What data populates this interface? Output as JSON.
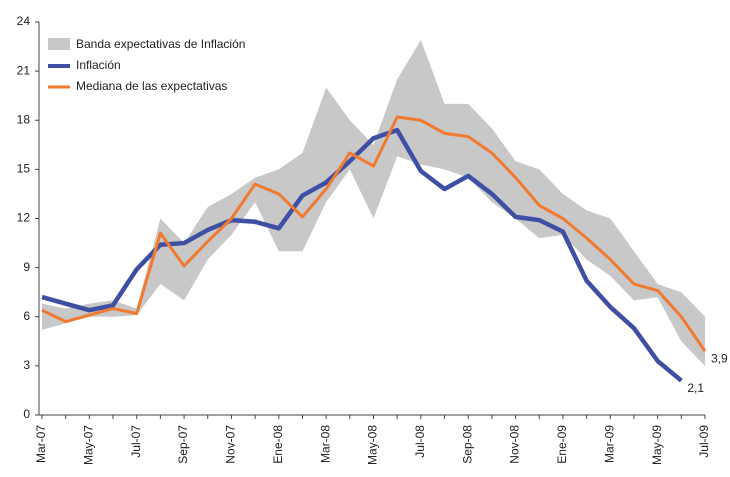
{
  "chart_data": {
    "type": "line",
    "categories": [
      "Mar-07",
      null,
      "May-07",
      null,
      "Jul-07",
      null,
      "Sep-07",
      null,
      "Nov-07",
      null,
      "Ene-08",
      null,
      "Mar-08",
      null,
      "May-08",
      null,
      "Jul-08",
      null,
      "Sep-08",
      null,
      "Nov-08",
      null,
      "Ene-09",
      null,
      "Mar-09",
      null,
      "May-09",
      null,
      "Jul-09"
    ],
    "band": {
      "name": "Banda expectativas de Inflación",
      "color": "#c8c8c8",
      "upper": [
        6.8,
        6.5,
        6.8,
        7.0,
        6.5,
        12.0,
        10.5,
        12.7,
        13.5,
        14.5,
        15.0,
        16.0,
        20.0,
        18.0,
        16.5,
        20.5,
        22.9,
        19.0,
        19.0,
        17.5,
        15.5,
        15.0,
        13.5,
        12.5,
        12.0,
        10.0,
        8.0,
        7.5,
        6.0
      ],
      "lower": [
        5.2,
        5.6,
        6.0,
        6.0,
        6.1,
        8.0,
        7.0,
        9.5,
        11.0,
        13.0,
        10.0,
        10.0,
        13.0,
        15.0,
        12.0,
        15.8,
        15.3,
        15.0,
        14.5,
        13.0,
        12.0,
        10.8,
        11.0,
        9.5,
        8.5,
        7.0,
        7.2,
        4.5,
        3.0
      ]
    },
    "series": [
      {
        "name": "Inflación",
        "color": "#3f4fa3",
        "values": [
          7.2,
          6.8,
          6.4,
          6.7,
          8.9,
          10.4,
          10.5,
          11.3,
          11.9,
          11.8,
          11.4,
          13.4,
          14.2,
          15.5,
          16.9,
          17.4,
          14.9,
          13.8,
          14.6,
          13.5,
          12.1,
          11.9,
          11.2,
          8.2,
          6.6,
          5.3,
          3.3,
          2.1,
          null
        ],
        "value_labels": [
          null,
          null,
          null,
          null,
          null,
          null,
          null,
          null,
          null,
          null,
          null,
          null,
          null,
          null,
          null,
          null,
          null,
          null,
          null,
          null,
          null,
          null,
          null,
          null,
          null,
          null,
          null,
          "2,1",
          null
        ]
      },
      {
        "name": "Mediana de las expectativas",
        "color": "#f07a30",
        "values": [
          6.4,
          5.7,
          6.1,
          6.5,
          6.2,
          11.1,
          9.1,
          10.6,
          12.0,
          14.1,
          13.5,
          12.1,
          13.8,
          16.0,
          15.2,
          18.2,
          18.0,
          17.2,
          17.0,
          16.0,
          14.5,
          12.8,
          12.0,
          10.8,
          9.5,
          8.0,
          7.6,
          6.0,
          3.9
        ],
        "value_labels": [
          null,
          null,
          null,
          null,
          null,
          null,
          null,
          null,
          null,
          null,
          null,
          null,
          null,
          null,
          null,
          null,
          null,
          null,
          null,
          null,
          null,
          null,
          null,
          null,
          null,
          null,
          null,
          null,
          "3,9"
        ]
      }
    ],
    "ylim": [
      0,
      24
    ],
    "yticks": [
      0,
      3,
      6,
      9,
      12,
      15,
      18,
      21,
      24
    ]
  }
}
